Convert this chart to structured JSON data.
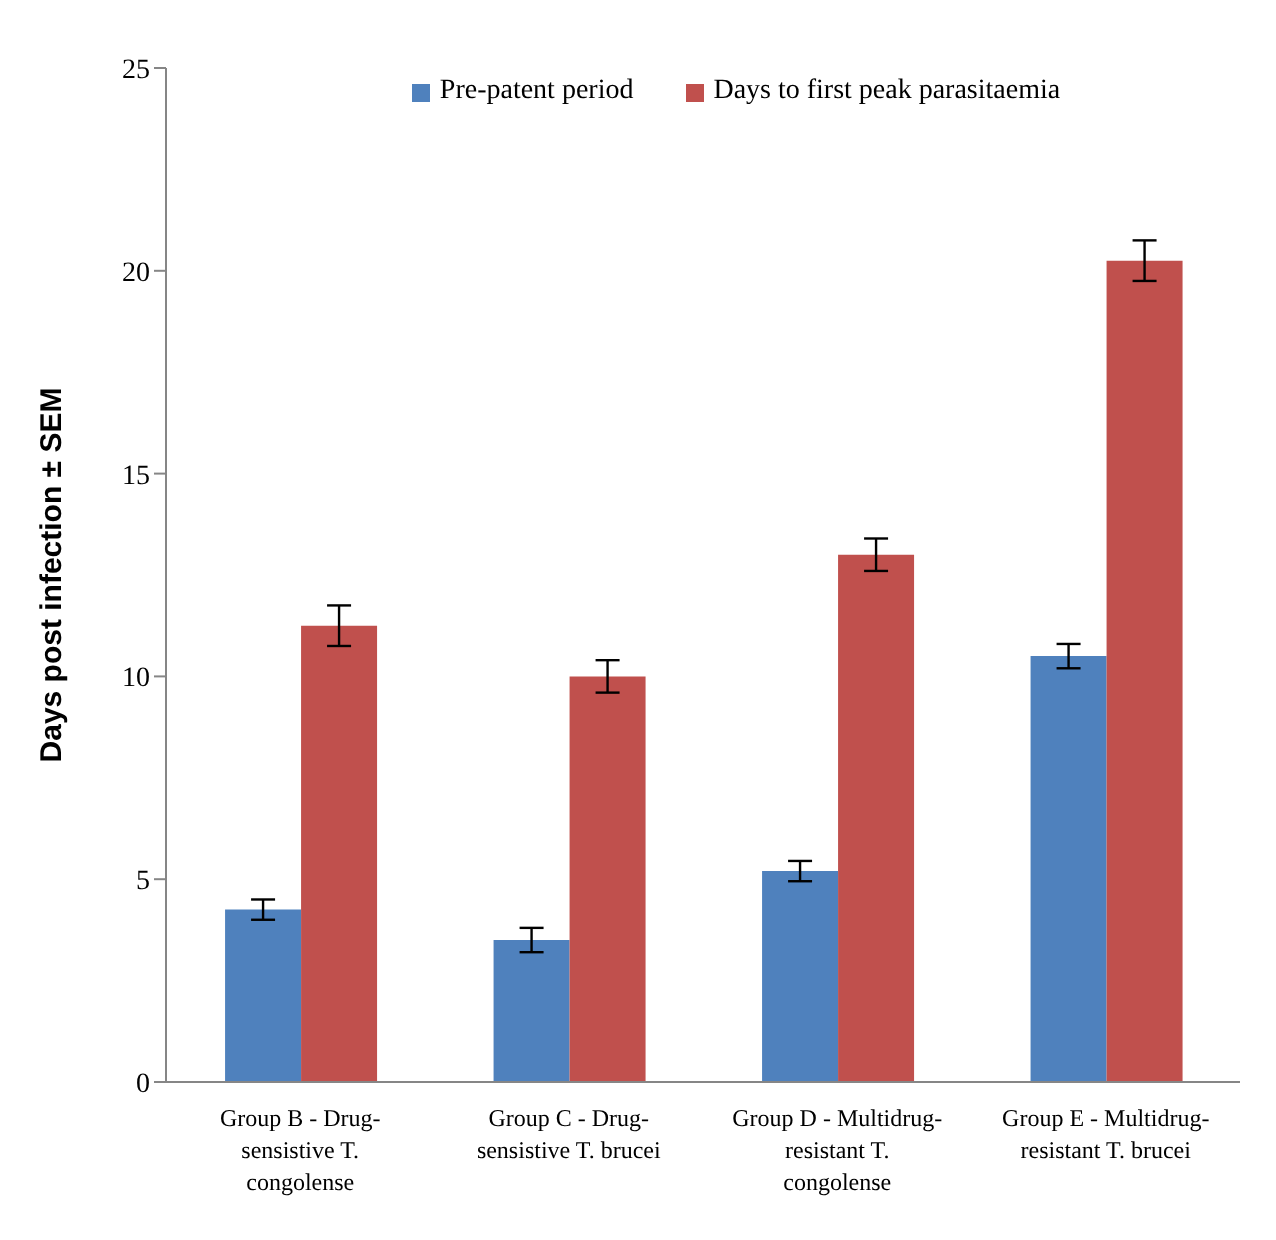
{
  "chart_data": {
    "type": "bar",
    "ylabel": "Days post infection ± SEM",
    "categories": [
      "Group B - Drug-sensistive T. congolense",
      "Group C - Drug-sensistive T. brucei",
      "Group D - Multidrug-resistant T. congolense",
      "Group E - Multidrug-resistant T. brucei"
    ],
    "series": [
      {
        "name": "Pre-patent period",
        "color": "#4f81bd",
        "values": [
          4.25,
          3.5,
          5.2,
          10.5
        ],
        "errors": [
          0.25,
          0.3,
          0.25,
          0.3
        ]
      },
      {
        "name": "Days to first peak parasitaemia",
        "color": "#c0504d",
        "values": [
          11.25,
          10,
          13,
          20.25
        ],
        "errors": [
          0.5,
          0.4,
          0.4,
          0.5
        ]
      }
    ],
    "ylim": [
      0,
      25
    ],
    "yticks": [
      0,
      5,
      10,
      15,
      20,
      25
    ],
    "grid": false,
    "legend": "top"
  }
}
